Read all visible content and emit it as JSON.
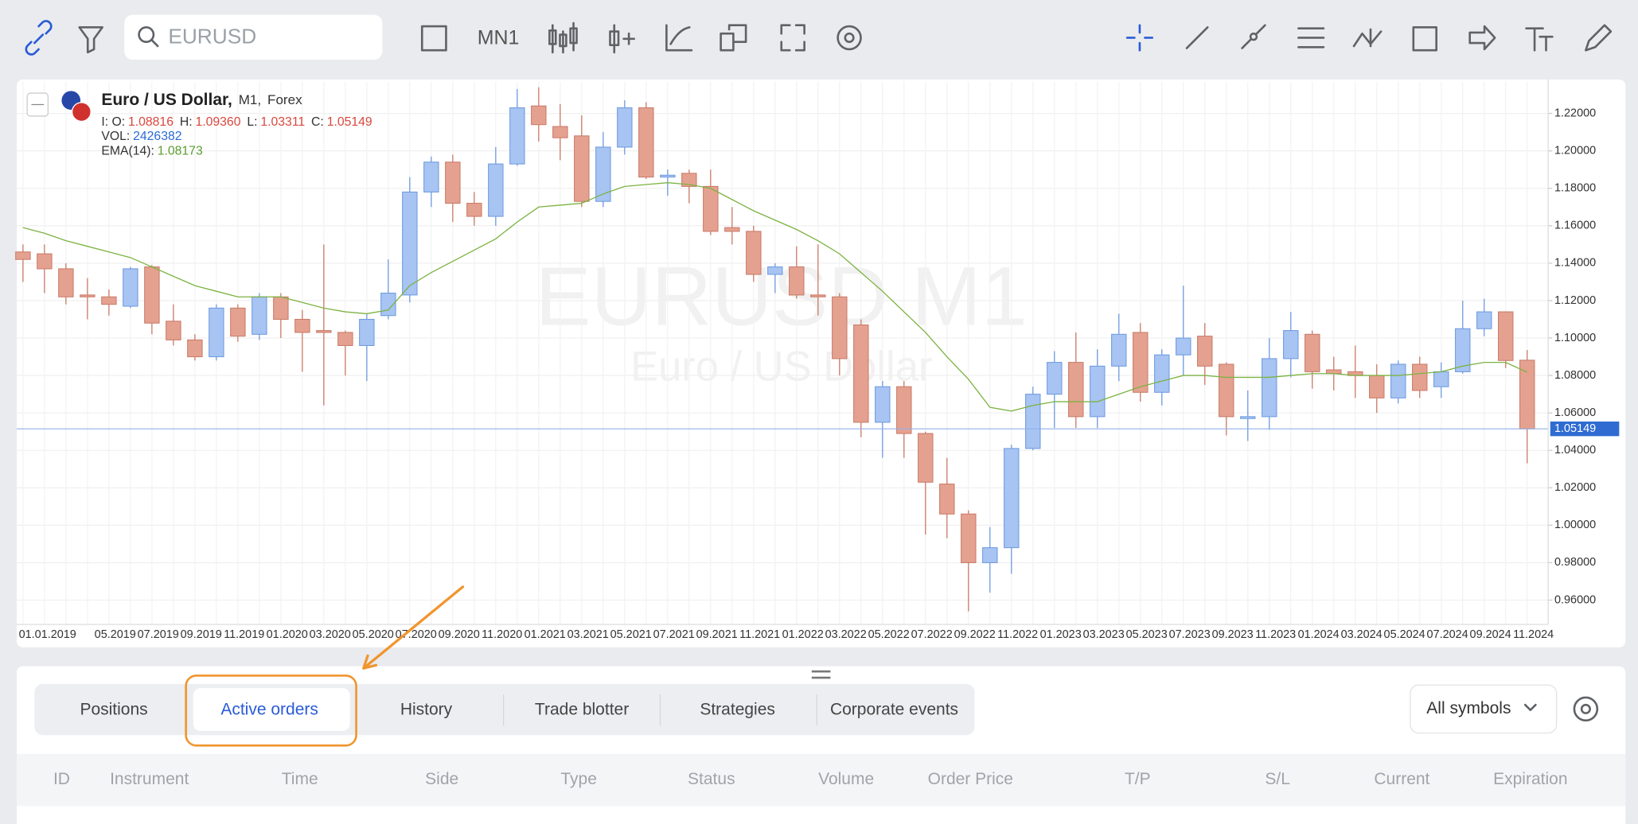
{
  "toolbar": {
    "search_placeholder": "EURUSD",
    "timeframe": "MN1"
  },
  "chart_data": {
    "type": "candlestick",
    "title": "Euro / US Dollar,",
    "timeframe": "M1,",
    "market": "Forex",
    "legend": [
      {
        "label": "I: O:",
        "value": 1.08816
      },
      {
        "label": "H:",
        "value": "1.09360"
      },
      {
        "label": "L:",
        "value": 1.03311
      },
      {
        "label": "C:",
        "value": 1.05149
      }
    ],
    "volume": {
      "label": "VOL:",
      "value": 2426382
    },
    "ema_legend": {
      "label": "EMA(14):",
      "value": 1.08173
    },
    "watermark": [
      "EURUSD M1",
      "Euro / US Dollar"
    ],
    "up_color": "#a7c4f2",
    "down_color": "#e5a190",
    "categories": [
      "01.01.2019",
      null,
      null,
      null,
      "05.2019",
      null,
      "07.2019",
      null,
      "09.2019",
      null,
      "11.2019",
      null,
      "01.2020",
      null,
      "03.2020",
      null,
      "05.2020",
      null,
      "07.2020",
      null,
      "09.2020",
      null,
      "11.2020",
      null,
      "01.2021",
      null,
      "03.2021",
      null,
      "05.2021",
      null,
      "07.2021",
      null,
      "09.2021",
      null,
      "11.2021",
      null,
      "01.2022",
      null,
      "03.2022",
      null,
      "05.2022",
      null,
      "07.2022",
      null,
      "09.2022",
      null,
      "11.2022",
      null,
      "01.2023",
      null,
      "03.2023",
      null,
      "05.2023",
      null,
      "07.2023",
      null,
      "09.2023",
      null,
      "11.2023",
      null,
      "01.2024",
      null,
      "03.2024",
      null,
      "05.2024",
      null,
      "07.2024",
      null,
      "09.2024",
      null,
      "11.2024"
    ],
    "open": [
      1.146,
      1.145,
      1.137,
      1.123,
      1.122,
      1.117,
      1.138,
      1.109,
      1.099,
      1.09,
      1.116,
      1.102,
      1.122,
      1.11,
      1.104,
      1.103,
      1.096,
      1.112,
      1.123,
      1.178,
      1.194,
      1.172,
      1.165,
      1.193,
      1.224,
      1.213,
      1.208,
      1.173,
      1.202,
      1.223,
      1.186,
      1.188,
      1.181,
      1.159,
      1.157,
      1.134,
      1.138,
      1.123,
      1.122,
      1.107,
      1.055,
      1.074,
      1.049,
      1.022,
      1.006,
      0.98,
      0.988,
      1.041,
      1.07,
      1.087,
      1.058,
      1.085,
      1.103,
      1.071,
      1.091,
      1.101,
      1.086,
      1.057,
      1.058,
      1.089,
      1.102,
      1.083,
      1.082,
      1.08,
      1.068,
      1.086,
      1.074,
      1.082,
      1.105,
      1.114,
      1.08816
    ],
    "high": [
      1.15,
      1.15,
      1.14,
      1.132,
      1.126,
      1.138,
      1.139,
      1.118,
      1.102,
      1.118,
      1.118,
      1.124,
      1.124,
      1.115,
      1.15,
      1.104,
      1.113,
      1.142,
      1.186,
      1.197,
      1.198,
      1.178,
      1.202,
      1.233,
      1.234,
      1.225,
      1.219,
      1.21,
      1.227,
      1.226,
      1.19,
      1.19,
      1.19,
      1.17,
      1.16,
      1.14,
      1.149,
      1.15,
      1.124,
      1.11,
      1.077,
      1.077,
      1.05,
      1.036,
      1.008,
      0.999,
      1.043,
      1.074,
      1.093,
      1.103,
      1.094,
      1.113,
      1.108,
      1.094,
      1.128,
      1.108,
      1.087,
      1.072,
      1.1,
      1.114,
      1.104,
      1.09,
      1.096,
      1.086,
      1.088,
      1.09,
      1.087,
      1.12,
      1.121,
      1.114,
      1.0936
    ],
    "low": [
      1.13,
      1.124,
      1.118,
      1.11,
      1.112,
      1.116,
      1.102,
      1.096,
      1.088,
      1.088,
      1.098,
      1.099,
      1.1,
      1.082,
      1.064,
      1.08,
      1.077,
      1.11,
      1.119,
      1.17,
      1.162,
      1.16,
      1.16,
      1.192,
      1.205,
      1.195,
      1.17,
      1.17,
      1.198,
      1.185,
      1.176,
      1.172,
      1.155,
      1.15,
      1.13,
      1.124,
      1.121,
      1.112,
      1.08,
      1.047,
      1.036,
      1.036,
      0.995,
      0.993,
      0.954,
      0.964,
      0.974,
      1.04,
      1.052,
      1.052,
      1.052,
      1.077,
      1.066,
      1.064,
      1.08,
      1.075,
      1.048,
      1.045,
      1.051,
      1.079,
      1.073,
      1.072,
      1.068,
      1.06,
      1.065,
      1.068,
      1.068,
      1.081,
      1.101,
      1.084,
      1.03311
    ],
    "close": [
      1.142,
      1.137,
      1.122,
      1.122,
      1.118,
      1.137,
      1.108,
      1.099,
      1.09,
      1.116,
      1.101,
      1.122,
      1.11,
      1.103,
      1.103,
      1.096,
      1.11,
      1.124,
      1.178,
      1.194,
      1.172,
      1.165,
      1.193,
      1.223,
      1.214,
      1.207,
      1.173,
      1.202,
      1.223,
      1.186,
      1.187,
      1.181,
      1.157,
      1.157,
      1.134,
      1.138,
      1.123,
      1.122,
      1.089,
      1.055,
      1.074,
      1.049,
      1.023,
      1.006,
      0.98,
      0.988,
      1.041,
      1.07,
      1.087,
      1.058,
      1.085,
      1.102,
      1.071,
      1.091,
      1.1,
      1.085,
      1.058,
      1.058,
      1.089,
      1.104,
      1.082,
      1.081,
      1.08,
      1.068,
      1.086,
      1.072,
      1.082,
      1.105,
      1.114,
      1.088,
      1.05149
    ],
    "ema": {
      "name": "EMA(14)",
      "color": "#7cb342",
      "values": [
        1.159,
        1.156,
        1.152,
        1.149,
        1.146,
        1.143,
        1.138,
        1.133,
        1.128,
        1.125,
        1.122,
        1.122,
        1.122,
        1.119,
        1.116,
        1.114,
        1.113,
        1.115,
        1.128,
        1.135,
        1.141,
        1.147,
        1.153,
        1.162,
        1.17,
        1.171,
        1.172,
        1.177,
        1.181,
        1.182,
        1.183,
        1.182,
        1.18,
        1.174,
        1.168,
        1.163,
        1.158,
        1.152,
        1.145,
        1.135,
        1.125,
        1.114,
        1.103,
        1.09,
        1.078,
        1.063,
        1.061,
        1.064,
        1.066,
        1.066,
        1.066,
        1.07,
        1.074,
        1.077,
        1.08,
        1.08,
        1.079,
        1.079,
        1.079,
        1.08,
        1.081,
        1.081,
        1.08,
        1.08,
        1.08,
        1.081,
        1.082,
        1.085,
        1.087,
        1.087,
        1.08173
      ]
    },
    "ylim": [
      0.947,
      1.237
    ],
    "yticks": [
      {
        "value": 0.96,
        "label": "0.96000"
      },
      {
        "value": 0.98,
        "label": "0.98000"
      },
      {
        "value": 1.0,
        "label": "1.00000"
      },
      {
        "value": 1.02,
        "label": "1.02000"
      },
      {
        "value": 1.04,
        "label": "1.04000"
      },
      {
        "value": 1.06,
        "label": "1.06000"
      },
      {
        "value": 1.08,
        "label": "1.08000"
      },
      {
        "value": 1.1,
        "label": "1.10000"
      },
      {
        "value": 1.12,
        "label": "1.12000"
      },
      {
        "value": 1.14,
        "label": "1.14000"
      },
      {
        "value": 1.16,
        "label": "1.16000"
      },
      {
        "value": 1.18,
        "label": "1.18000"
      },
      {
        "value": 1.2,
        "label": "1.20000"
      },
      {
        "value": 1.22,
        "label": "1.22000"
      }
    ],
    "grid": true
  },
  "panel": {
    "tabs": [
      "Positions",
      "Active orders",
      "History",
      "Trade blotter",
      "Strategies",
      "Corporate events"
    ],
    "filter": "All symbols",
    "columns": [
      "ID",
      "Instrument",
      "Time",
      "Side",
      "Type",
      "Status",
      "Volume",
      "Order Price",
      "T/P",
      "S/L",
      "Current",
      "Expiration"
    ]
  }
}
